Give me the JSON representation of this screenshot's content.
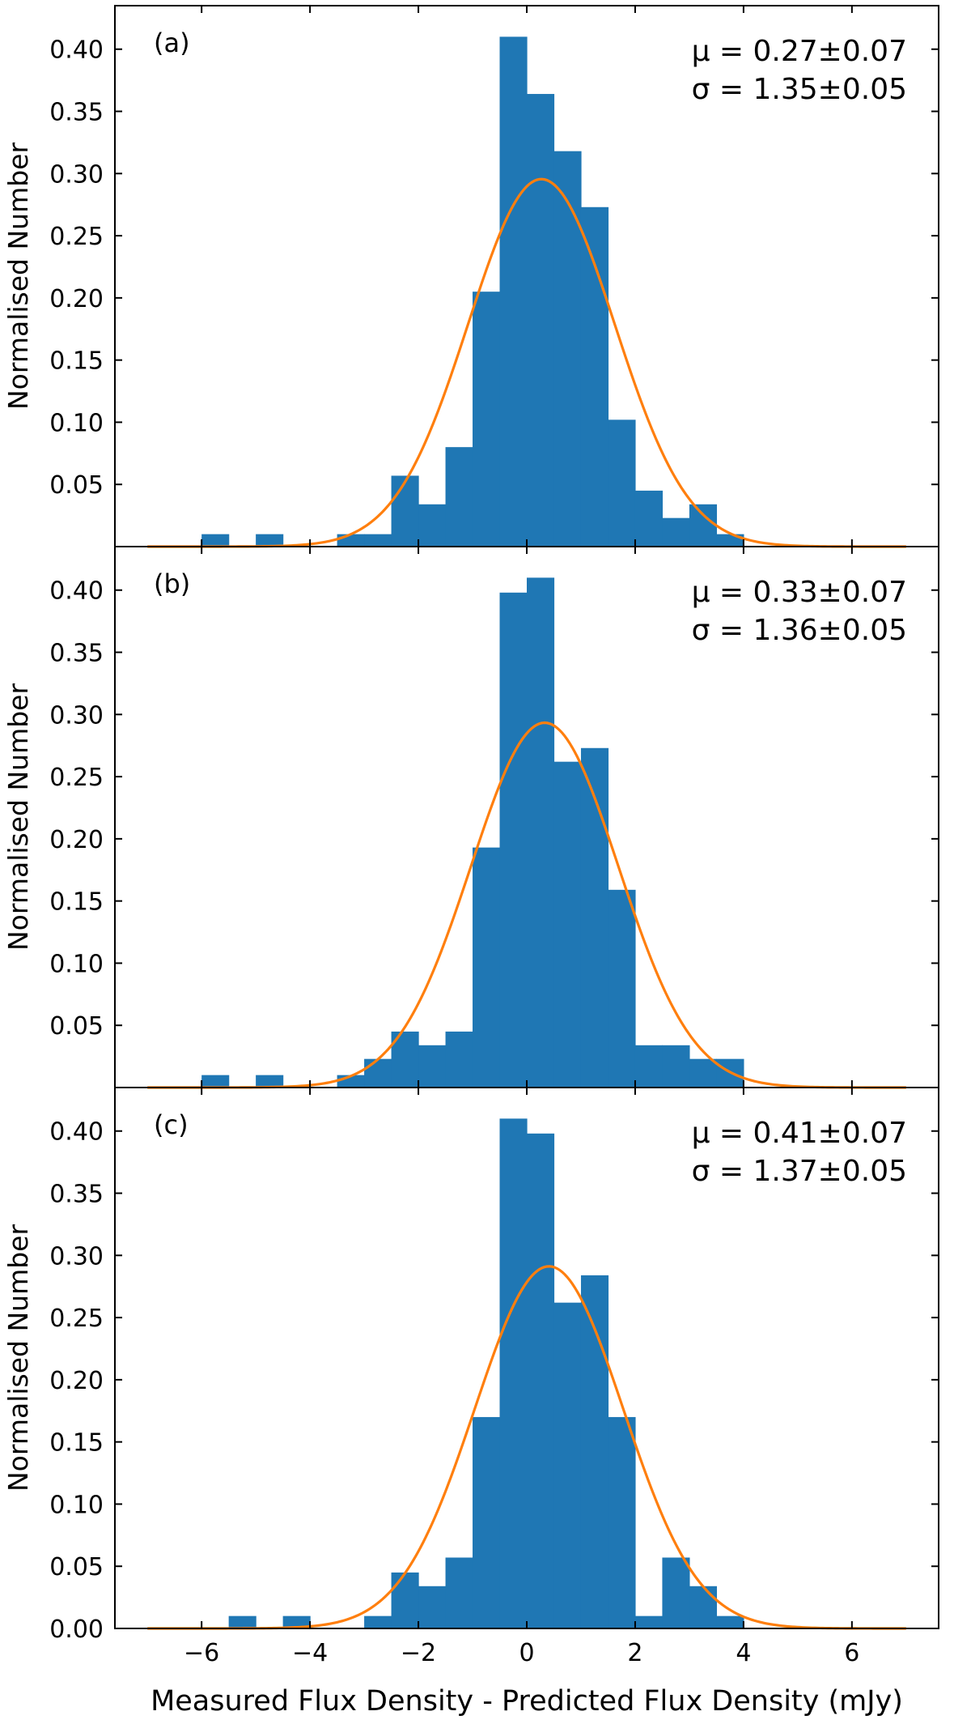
{
  "figure": {
    "xlabel": "Measured Flux Density - Predicted Flux Density (mJy)"
  },
  "colors": {
    "bars": "#1f77b4",
    "fit": "#ff7f0e",
    "axes": "#000000"
  },
  "chart_data": [
    {
      "type": "bar",
      "panel_label": "(a)",
      "ylabel": "Normalised Number",
      "xlim": [
        -7.6,
        7.6
      ],
      "ylim": [
        0,
        0.435
      ],
      "yticks": [
        "0.05",
        "0.10",
        "0.15",
        "0.20",
        "0.25",
        "0.30",
        "0.35",
        "0.40"
      ],
      "stat_mu": "μ = 0.27±0.07",
      "stat_sigma": "σ = 1.35±0.05",
      "fit": {
        "mu": 0.27,
        "sigma": 1.35
      },
      "bin_width": 0.5,
      "bins_left": [
        -6.0,
        -5.0,
        -3.5,
        -3.0,
        -2.5,
        -2.0,
        -1.5,
        -1.0,
        -0.5,
        0.0,
        0.5,
        1.0,
        1.5,
        2.0,
        2.5,
        3.0,
        3.5
      ],
      "values": [
        0.01,
        0.01,
        0.01,
        0.01,
        0.057,
        0.034,
        0.08,
        0.205,
        0.41,
        0.364,
        0.318,
        0.273,
        0.102,
        0.045,
        0.023,
        0.034,
        0.01
      ]
    },
    {
      "type": "bar",
      "panel_label": "(b)",
      "ylabel": "Normalised Number",
      "xlim": [
        -7.6,
        7.6
      ],
      "ylim": [
        0,
        0.435
      ],
      "yticks": [
        "0.05",
        "0.10",
        "0.15",
        "0.20",
        "0.25",
        "0.30",
        "0.35",
        "0.40"
      ],
      "stat_mu": "μ = 0.33±0.07",
      "stat_sigma": "σ = 1.36±0.05",
      "fit": {
        "mu": 0.33,
        "sigma": 1.36
      },
      "bin_width": 0.5,
      "bins_left": [
        -6.0,
        -5.0,
        -3.5,
        -3.0,
        -2.5,
        -2.0,
        -1.5,
        -1.0,
        -0.5,
        0.0,
        0.5,
        1.0,
        1.5,
        2.0,
        2.5,
        3.0,
        3.5
      ],
      "values": [
        0.01,
        0.01,
        0.01,
        0.023,
        0.045,
        0.034,
        0.045,
        0.193,
        0.398,
        0.41,
        0.262,
        0.273,
        0.159,
        0.034,
        0.034,
        0.023,
        0.023
      ]
    },
    {
      "type": "bar",
      "panel_label": "(c)",
      "ylabel": "Normalised Number",
      "xlim": [
        -7.6,
        7.6
      ],
      "ylim": [
        0,
        0.435
      ],
      "yticks": [
        "0.00",
        "0.05",
        "0.10",
        "0.15",
        "0.20",
        "0.25",
        "0.30",
        "0.35",
        "0.40"
      ],
      "xticks": [
        "−6",
        "−4",
        "−2",
        "0",
        "2",
        "4",
        "6"
      ],
      "stat_mu": "μ = 0.41±0.07",
      "stat_sigma": "σ = 1.37±0.05",
      "fit": {
        "mu": 0.41,
        "sigma": 1.37
      },
      "bin_width": 0.5,
      "bins_left": [
        -5.5,
        -4.5,
        -3.0,
        -2.5,
        -2.0,
        -1.5,
        -1.0,
        -0.5,
        0.0,
        0.5,
        1.0,
        1.5,
        2.0,
        2.5,
        3.0,
        3.5
      ],
      "values": [
        0.01,
        0.01,
        0.01,
        0.045,
        0.034,
        0.057,
        0.17,
        0.41,
        0.398,
        0.262,
        0.284,
        0.17,
        0.01,
        0.057,
        0.034,
        0.01
      ]
    }
  ]
}
